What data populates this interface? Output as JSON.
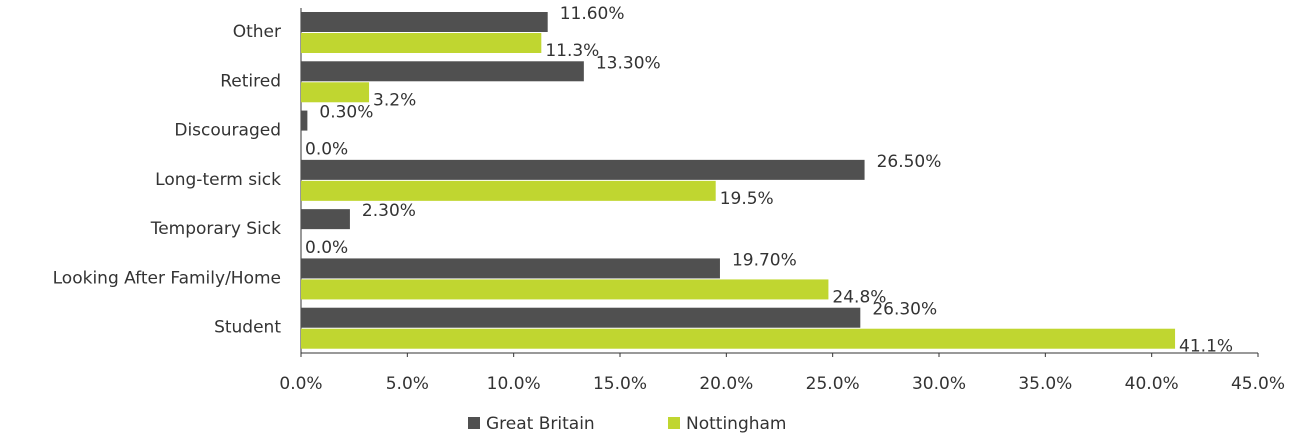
{
  "chart_data": {
    "type": "hbar",
    "categories": [
      "Other",
      "Retired",
      "Discouraged",
      "Long-term sick",
      "Temporary Sick",
      "Looking After Family/Home",
      "Student"
    ],
    "series": [
      {
        "name": "Great Britain",
        "color": "#505050",
        "values": [
          11.6,
          13.3,
          0.3,
          26.5,
          2.3,
          19.7,
          26.3
        ],
        "value_labels": [
          "11.60%",
          "13.30%",
          "0.30%",
          "26.50%",
          "2.30%",
          "19.70%",
          "26.30%"
        ]
      },
      {
        "name": "Nottingham",
        "color": "#c0d630",
        "values": [
          11.3,
          3.2,
          0.0,
          19.5,
          0.0,
          24.8,
          41.1
        ],
        "value_labels": [
          "11.3%",
          "3.2%",
          "0.0%",
          "19.5%",
          "0.0%",
          "24.8%",
          "41.1%"
        ]
      }
    ],
    "xlim": [
      0,
      45
    ],
    "xticks": [
      {
        "value": 0,
        "label": "0.0%"
      },
      {
        "value": 5,
        "label": "5.0%"
      },
      {
        "value": 10,
        "label": "10.0%"
      },
      {
        "value": 15,
        "label": "15.0%"
      },
      {
        "value": 20,
        "label": "20.0%"
      },
      {
        "value": 25,
        "label": "25.0%"
      },
      {
        "value": 30,
        "label": "30.0%"
      },
      {
        "value": 35,
        "label": "35.0%"
      },
      {
        "value": 40,
        "label": "40.0%"
      },
      {
        "value": 45,
        "label": "45.0%"
      }
    ],
    "legend": "bottom"
  }
}
